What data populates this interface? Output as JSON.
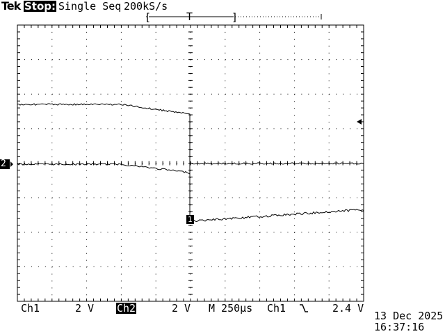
{
  "header": {
    "brand": "Tek",
    "run_state": "Stop:",
    "acquisition": "Single Seq",
    "sample_rate": "200kS/s",
    "trigger_position_marker": "T",
    "record_window_left": "[",
    "record_window_right": "]"
  },
  "markers": {
    "channel_ground_label": "2",
    "trigger_level_arrow": "left-arrow-icon",
    "trace_marker": "1"
  },
  "footer": {
    "ch1_label": "Ch1",
    "ch1_scale": "2 V",
    "ch2_label": "Ch2",
    "ch2_scale": "2 V",
    "timebase": "M 250µs",
    "trigger_source": "Ch1",
    "trigger_slope_icon": "falling-edge-icon",
    "trigger_level": "2.4 V",
    "date": "13 Dec 2025",
    "time": "16:37:16"
  },
  "colors": {
    "background": "#ffffff",
    "trace": "#000000",
    "graticule": "#000000"
  }
}
